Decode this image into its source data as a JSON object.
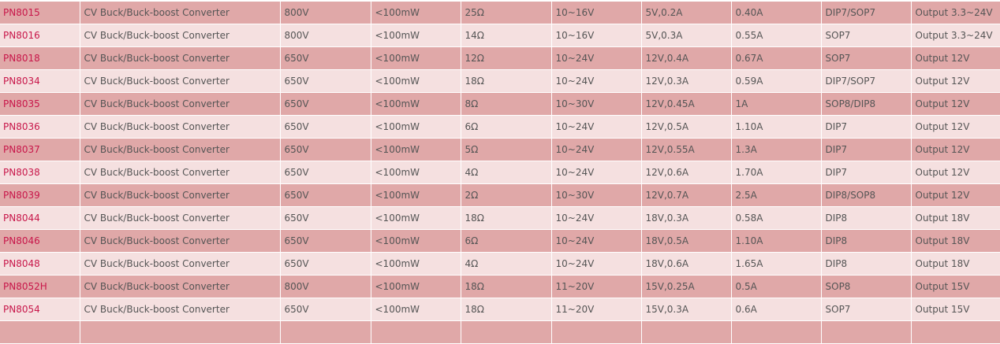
{
  "colors": {
    "row_dark": "#e0a8a8",
    "row_light": "#f5e0e0",
    "part_link": "#c8174a"
  },
  "rows": [
    [
      "PN8015",
      "CV Buck/Buck-boost Converter",
      "800V",
      "<100mW",
      "25Ω",
      "10~16V",
      "5V,0.2A",
      "0.40A",
      "DIP7/SOP7",
      "Output 3.3~24V"
    ],
    [
      "PN8016",
      "CV Buck/Buck-boost Converter",
      "800V",
      "<100mW",
      "14Ω",
      "10~16V",
      "5V,0.3A",
      "0.55A",
      "SOP7",
      "Output 3.3~24V"
    ],
    [
      "PN8018",
      "CV Buck/Buck-boost Converter",
      "650V",
      "<100mW",
      "12Ω",
      "10~24V",
      "12V,0.4A",
      "0.67A",
      "SOP7",
      "Output 12V"
    ],
    [
      "PN8034",
      "CV Buck/Buck-boost Converter",
      "650V",
      "<100mW",
      "18Ω",
      "10~24V",
      "12V,0.3A",
      "0.59A",
      "DIP7/SOP7",
      "Output 12V"
    ],
    [
      "PN8035",
      "CV Buck/Buck-boost Converter",
      "650V",
      "<100mW",
      "8Ω",
      "10~30V",
      "12V,0.45A",
      "1A",
      "SOP8/DIP8",
      "Output 12V"
    ],
    [
      "PN8036",
      "CV Buck/Buck-boost Converter",
      "650V",
      "<100mW",
      "6Ω",
      "10~24V",
      "12V,0.5A",
      "1.10A",
      "DIP7",
      "Output 12V"
    ],
    [
      "PN8037",
      "CV Buck/Buck-boost Converter",
      "650V",
      "<100mW",
      "5Ω",
      "10~24V",
      "12V,0.55A",
      "1.3A",
      "DIP7",
      "Output 12V"
    ],
    [
      "PN8038",
      "CV Buck/Buck-boost Converter",
      "650V",
      "<100mW",
      "4Ω",
      "10~24V",
      "12V,0.6A",
      "1.70A",
      "DIP7",
      "Output 12V"
    ],
    [
      "PN8039",
      "CV Buck/Buck-boost Converter",
      "650V",
      "<100mW",
      "2Ω",
      "10~30V",
      "12V,0.7A",
      "2.5A",
      "DIP8/SOP8",
      "Output 12V"
    ],
    [
      "PN8044",
      "CV Buck/Buck-boost Converter",
      "650V",
      "<100mW",
      "18Ω",
      "10~24V",
      "18V,0.3A",
      "0.58A",
      "DIP8",
      "Output 18V"
    ],
    [
      "PN8046",
      "CV Buck/Buck-boost Converter",
      "650V",
      "<100mW",
      "6Ω",
      "10~24V",
      "18V,0.5A",
      "1.10A",
      "DIP8",
      "Output 18V"
    ],
    [
      "PN8048",
      "CV Buck/Buck-boost Converter",
      "650V",
      "<100mW",
      "4Ω",
      "10~24V",
      "18V,0.6A",
      "1.65A",
      "DIP8",
      "Output 18V"
    ],
    [
      "PN8052H",
      "CV Buck/Buck-boost Converter",
      "800V",
      "<100mW",
      "18Ω",
      "11~20V",
      "15V,0.25A",
      "0.5A",
      "SOP8",
      "Output 15V"
    ],
    [
      "PN8054",
      "CV Buck/Buck-boost Converter",
      "650V",
      "<100mW",
      "18Ω",
      "11~20V",
      "15V,0.3A",
      "0.6A",
      "SOP7",
      "Output 15V"
    ]
  ]
}
